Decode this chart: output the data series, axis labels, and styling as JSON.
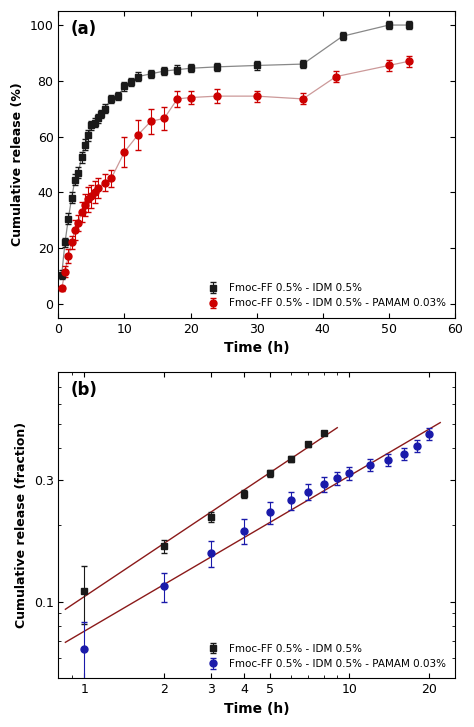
{
  "panel_a": {
    "black_x": [
      0.5,
      1.0,
      1.5,
      2.0,
      2.5,
      3.0,
      3.5,
      4.0,
      4.5,
      5.0,
      5.5,
      6.0,
      6.5,
      7.0,
      8.0,
      9.0,
      10.0,
      11.0,
      12.0,
      14.0,
      16.0,
      18.0,
      20.0,
      24.0,
      30.0,
      37.0,
      43.0,
      50.0,
      53.0
    ],
    "black_y": [
      10.5,
      22.0,
      30.5,
      38.0,
      44.5,
      47.0,
      52.5,
      57.0,
      60.5,
      64.0,
      65.0,
      66.5,
      68.0,
      70.0,
      73.5,
      74.5,
      78.0,
      79.5,
      81.5,
      82.5,
      83.5,
      84.0,
      84.5,
      85.0,
      85.5,
      86.0,
      96.0,
      100.0,
      100.0
    ],
    "black_yerr": [
      1.5,
      1.5,
      2.0,
      2.0,
      2.0,
      2.0,
      2.0,
      2.0,
      2.0,
      1.5,
      1.5,
      1.5,
      1.5,
      1.5,
      1.5,
      1.5,
      1.5,
      1.5,
      1.5,
      1.5,
      1.5,
      1.5,
      1.5,
      1.5,
      1.5,
      1.5,
      1.5,
      1.5,
      1.5
    ],
    "red_x": [
      0.5,
      1.0,
      1.5,
      2.0,
      2.5,
      3.0,
      3.5,
      4.0,
      4.5,
      5.0,
      5.5,
      6.0,
      7.0,
      8.0,
      10.0,
      12.0,
      14.0,
      16.0,
      18.0,
      20.0,
      24.0,
      30.0,
      37.0,
      42.0,
      50.0,
      53.0
    ],
    "red_y": [
      5.5,
      11.5,
      17.0,
      22.0,
      26.5,
      29.0,
      33.0,
      35.5,
      37.5,
      38.5,
      40.0,
      41.5,
      43.5,
      45.0,
      54.5,
      60.5,
      65.5,
      66.5,
      73.5,
      74.0,
      74.5,
      74.5,
      73.5,
      81.5,
      85.5,
      87.0
    ],
    "red_yerr": [
      1.0,
      2.0,
      2.5,
      2.5,
      3.5,
      3.0,
      3.5,
      4.0,
      4.5,
      4.0,
      4.0,
      3.5,
      3.0,
      3.0,
      5.5,
      5.5,
      4.5,
      4.0,
      3.0,
      2.5,
      2.5,
      2.0,
      2.0,
      2.0,
      2.0,
      2.0
    ],
    "black_color": "#1a1a1a",
    "red_color": "#cc0000",
    "line_color_black": "#888888",
    "line_color_red": "#cc9999",
    "ylabel": "Cumulative release (%)",
    "xlabel": "Time (h)",
    "xlim": [
      0,
      58
    ],
    "ylim": [
      -5,
      105
    ],
    "xticks": [
      0,
      10,
      20,
      30,
      40,
      50,
      60
    ],
    "yticks": [
      0,
      20,
      40,
      60,
      80,
      100
    ],
    "label_black": "Fmoc-FF 0.5% - IDM 0.5%",
    "label_red": "Fmoc-FF 0.5% - IDM 0.5% - PAMAM 0.03%",
    "panel_label": "(a)"
  },
  "panel_b": {
    "black_x": [
      1.0,
      2.0,
      3.0,
      4.0,
      5.0,
      6.0,
      7.0,
      8.0
    ],
    "black_y": [
      0.11,
      0.165,
      0.215,
      0.265,
      0.32,
      0.365,
      0.415,
      0.46
    ],
    "black_yerr": [
      0.028,
      0.01,
      0.01,
      0.01,
      0.01,
      0.01,
      0.01,
      0.01
    ],
    "blue_x": [
      1.0,
      2.0,
      3.0,
      4.0,
      5.0,
      6.0,
      7.0,
      8.0,
      9.0,
      10.0,
      12.0,
      14.0,
      16.0,
      18.0,
      20.0
    ],
    "blue_y": [
      0.065,
      0.115,
      0.155,
      0.19,
      0.225,
      0.25,
      0.27,
      0.29,
      0.305,
      0.32,
      0.345,
      0.36,
      0.38,
      0.41,
      0.455
    ],
    "blue_yerr": [
      0.018,
      0.015,
      0.018,
      0.022,
      0.022,
      0.02,
      0.02,
      0.02,
      0.018,
      0.018,
      0.02,
      0.02,
      0.02,
      0.022,
      0.025
    ],
    "fit_color": "#8B1A1A",
    "black_color": "#1a1a1a",
    "blue_color": "#1a1aaa",
    "ylabel": "Cumulative release (fraction)",
    "xlabel": "Time (h)",
    "xlim_log": [
      0.8,
      25
    ],
    "ylim_log": [
      0.05,
      0.8
    ],
    "label_black": "Fmoc-FF 0.5% - IDM 0.5%",
    "label_blue": "Fmoc-FF 0.5% - IDM 0.5% - PAMAM 0.03%",
    "panel_label": "(b)",
    "xticks": [
      1,
      2,
      3,
      4,
      5,
      10,
      20
    ],
    "xticklabels": [
      "1",
      "2",
      "3",
      "4",
      "5",
      "10",
      "20"
    ],
    "yticks": [
      0.1,
      0.3
    ],
    "yticklabels": [
      "0.1",
      "0.3"
    ]
  }
}
